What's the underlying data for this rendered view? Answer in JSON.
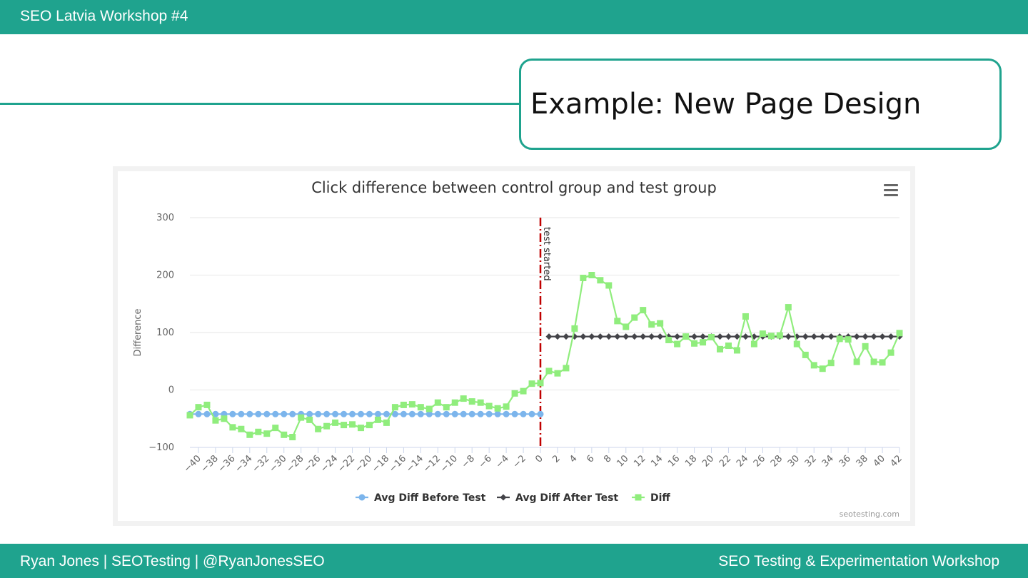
{
  "header": {
    "title": "SEO Latvia Workshop #4"
  },
  "slide": {
    "title": "Example: New Page Design"
  },
  "footer": {
    "left": "Ryan Jones | SEOTesting | @RyanJonesSEO",
    "right": "SEO Testing & Experimentation Workshop"
  },
  "chart_data": {
    "type": "line",
    "title": "Click difference between control group and test group",
    "xlabel": "",
    "ylabel": "Difference",
    "xlim": [
      -41,
      42
    ],
    "ylim": [
      -100,
      300
    ],
    "y_ticks": [
      -100,
      0,
      100,
      200,
      300
    ],
    "x_ticks": [
      -40,
      -38,
      -36,
      -34,
      -32,
      -30,
      -28,
      -26,
      -24,
      -22,
      -20,
      -18,
      -16,
      -14,
      -12,
      -10,
      -8,
      -6,
      -4,
      -2,
      0,
      2,
      4,
      6,
      8,
      10,
      12,
      14,
      16,
      18,
      20,
      22,
      24,
      26,
      28,
      30,
      32,
      34,
      36,
      38,
      40,
      42
    ],
    "grid": true,
    "legend_position": "bottom-center",
    "annotation": {
      "x": 0,
      "label": "test started",
      "color": "#c00000"
    },
    "credit": "seotesting.com",
    "series": [
      {
        "name": "Avg Diff Before Test",
        "color": "#7cb5ec",
        "marker": "circle",
        "x": [
          -41,
          -40,
          -39,
          -38,
          -37,
          -36,
          -35,
          -34,
          -33,
          -32,
          -31,
          -30,
          -29,
          -28,
          -27,
          -26,
          -25,
          -24,
          -23,
          -22,
          -21,
          -20,
          -19,
          -18,
          -17,
          -16,
          -15,
          -14,
          -13,
          -12,
          -11,
          -10,
          -9,
          -8,
          -7,
          -6,
          -5,
          -4,
          -3,
          -2,
          -1,
          0
        ],
        "y": [
          -42,
          -42,
          -42,
          -42,
          -42,
          -42,
          -42,
          -42,
          -42,
          -42,
          -42,
          -42,
          -42,
          -42,
          -42,
          -42,
          -42,
          -42,
          -42,
          -42,
          -42,
          -42,
          -42,
          -42,
          -42,
          -42,
          -42,
          -42,
          -42,
          -42,
          -42,
          -42,
          -42,
          -42,
          -42,
          -42,
          -42,
          -42,
          -42,
          -42,
          -42,
          -42
        ]
      },
      {
        "name": "Avg Diff After Test",
        "color": "#434348",
        "marker": "diamond",
        "x": [
          1,
          2,
          3,
          4,
          5,
          6,
          7,
          8,
          9,
          10,
          11,
          12,
          13,
          14,
          15,
          16,
          17,
          18,
          19,
          20,
          21,
          22,
          23,
          24,
          25,
          26,
          27,
          28,
          29,
          30,
          31,
          32,
          33,
          34,
          35,
          36,
          37,
          38,
          39,
          40,
          41,
          42
        ],
        "y": [
          93,
          93,
          93,
          93,
          93,
          93,
          93,
          93,
          93,
          93,
          93,
          93,
          93,
          93,
          93,
          93,
          93,
          93,
          93,
          93,
          93,
          93,
          93,
          93,
          93,
          93,
          93,
          93,
          93,
          93,
          93,
          93,
          93,
          93,
          93,
          93,
          93,
          93,
          93,
          93,
          93,
          93
        ]
      },
      {
        "name": "Diff",
        "color": "#90ed7d",
        "marker": "square",
        "x": [
          -41,
          -40,
          -39,
          -38,
          -37,
          -36,
          -35,
          -34,
          -33,
          -32,
          -31,
          -30,
          -29,
          -28,
          -27,
          -26,
          -25,
          -24,
          -23,
          -22,
          -21,
          -20,
          -19,
          -18,
          -17,
          -16,
          -15,
          -14,
          -13,
          -12,
          -11,
          -10,
          -9,
          -8,
          -7,
          -6,
          -5,
          -4,
          -3,
          -2,
          -1,
          0,
          1,
          2,
          3,
          4,
          5,
          6,
          7,
          8,
          9,
          10,
          11,
          12,
          13,
          14,
          15,
          16,
          17,
          18,
          19,
          20,
          21,
          22,
          23,
          24,
          25,
          26,
          27,
          28,
          29,
          30,
          31,
          32,
          33,
          34,
          35,
          36,
          37,
          38,
          39,
          40,
          41,
          42
        ],
        "y": [
          -44,
          -30,
          -26,
          -53,
          -50,
          -65,
          -68,
          -78,
          -73,
          -76,
          -66,
          -78,
          -82,
          -48,
          -52,
          -68,
          -63,
          -57,
          -61,
          -60,
          -66,
          -61,
          -52,
          -57,
          -30,
          -26,
          -25,
          -30,
          -33,
          -22,
          -30,
          -22,
          -15,
          -20,
          -22,
          -28,
          -32,
          -29,
          -6,
          -2,
          11,
          12,
          33,
          29,
          38,
          107,
          195,
          200,
          191,
          182,
          120,
          110,
          126,
          139,
          114,
          116,
          87,
          80,
          93,
          81,
          83,
          92,
          71,
          77,
          69,
          128,
          80,
          98,
          94,
          95,
          144,
          80,
          61,
          43,
          37,
          47,
          89,
          88,
          49,
          76,
          49,
          48,
          65,
          99
        ]
      }
    ]
  }
}
